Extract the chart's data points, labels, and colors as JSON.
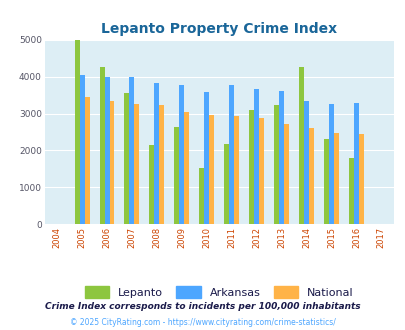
{
  "title": "Lepanto Property Crime Index",
  "years": [
    2004,
    2005,
    2006,
    2007,
    2008,
    2009,
    2010,
    2011,
    2012,
    2013,
    2014,
    2015,
    2016,
    2017
  ],
  "lepanto": [
    0,
    5000,
    4250,
    3550,
    2150,
    2625,
    1525,
    2175,
    3100,
    3225,
    4250,
    2300,
    1800,
    0
  ],
  "arkansas": [
    0,
    4050,
    3975,
    3975,
    3825,
    3775,
    3575,
    3775,
    3675,
    3600,
    3350,
    3250,
    3275,
    0
  ],
  "national": [
    0,
    3450,
    3350,
    3250,
    3225,
    3050,
    2950,
    2925,
    2875,
    2725,
    2600,
    2475,
    2450,
    0
  ],
  "lepanto_color": "#8dc63f",
  "arkansas_color": "#4da6ff",
  "national_color": "#ffb347",
  "bg_color": "#ddeef5",
  "ylim": [
    0,
    5000
  ],
  "yticks": [
    0,
    1000,
    2000,
    3000,
    4000,
    5000
  ],
  "subtitle": "Crime Index corresponds to incidents per 100,000 inhabitants",
  "footer": "© 2025 CityRating.com - https://www.cityrating.com/crime-statistics/",
  "title_color": "#1a6699",
  "subtitle_color": "#1a1a4a",
  "footer_color": "#4da6ff",
  "legend_text_color": "#1a1a4a"
}
